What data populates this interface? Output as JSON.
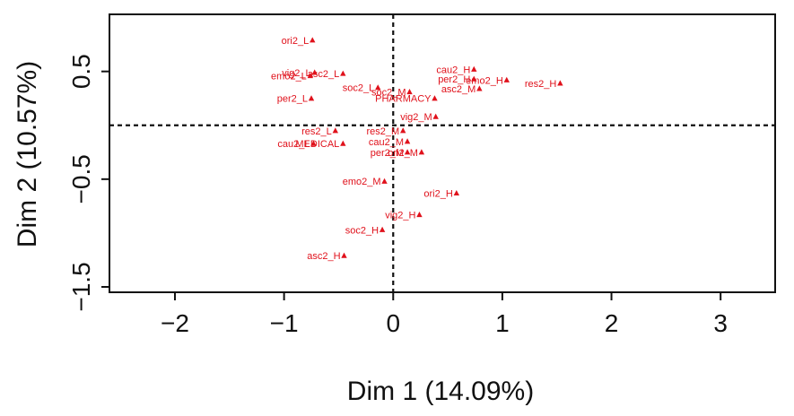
{
  "chart_data": {
    "type": "scatter",
    "title": "",
    "xlabel": "Dim 1 (14.09%)",
    "ylabel": "Dim 2 (10.57%)",
    "xlim": [
      -2.6,
      3.5
    ],
    "ylim": [
      -1.55,
      1.03
    ],
    "xticks": [
      -2,
      -1,
      0,
      1,
      2,
      3
    ],
    "yticks": [
      -1.5,
      -0.5,
      0.5
    ],
    "xtick_labels": [
      "−2",
      "−1",
      "0",
      "1",
      "2",
      "3"
    ],
    "ytick_labels": [
      "−1.5",
      "−0.5",
      "0.5"
    ],
    "reference_lines": {
      "x": 0,
      "y": 0,
      "style": "dashed"
    },
    "grid": false,
    "marker": "triangle",
    "color": "#e0111b",
    "points": [
      {
        "label": "ori2_L",
        "x": -0.74,
        "y": 0.79
      },
      {
        "label": "vig2_L",
        "x": -0.72,
        "y": 0.49
      },
      {
        "label": "emo2_L",
        "x": -0.76,
        "y": 0.46
      },
      {
        "label": "asc2_L",
        "x": -0.46,
        "y": 0.48
      },
      {
        "label": "soc2_L",
        "x": -0.14,
        "y": 0.35
      },
      {
        "label": "per2_L",
        "x": -0.75,
        "y": 0.25
      },
      {
        "label": "soc2_M",
        "x": 0.15,
        "y": 0.31
      },
      {
        "label": "cau2_H",
        "x": 0.74,
        "y": 0.52
      },
      {
        "label": "per2_H",
        "x": 0.74,
        "y": 0.43
      },
      {
        "label": "emo2_H",
        "x": 1.04,
        "y": 0.42
      },
      {
        "label": "asc2_M",
        "x": 0.79,
        "y": 0.34
      },
      {
        "label": "res2_H",
        "x": 1.53,
        "y": 0.39
      },
      {
        "label": "PHARMACY",
        "x": 0.38,
        "y": 0.25
      },
      {
        "label": "vig2_M",
        "x": 0.39,
        "y": 0.08
      },
      {
        "label": "res2_M",
        "x": 0.09,
        "y": -0.05
      },
      {
        "label": "res2_L",
        "x": -0.53,
        "y": -0.05
      },
      {
        "label": "cau2_M",
        "x": 0.13,
        "y": -0.15
      },
      {
        "label": "cau2_L",
        "x": -0.73,
        "y": -0.17
      },
      {
        "label": "MEDICAL",
        "x": -0.46,
        "y": -0.17
      },
      {
        "label": "per2_M",
        "x": 0.13,
        "y": -0.25
      },
      {
        "label": "ori2_M",
        "x": 0.26,
        "y": -0.25
      },
      {
        "label": "emo2_M",
        "x": -0.08,
        "y": -0.52
      },
      {
        "label": "ori2_H",
        "x": 0.58,
        "y": -0.63
      },
      {
        "label": "vig2_H",
        "x": 0.24,
        "y": -0.83
      },
      {
        "label": "soc2_H",
        "x": -0.1,
        "y": -0.97
      },
      {
        "label": "asc2_H",
        "x": -0.45,
        "y": -1.21
      }
    ]
  }
}
